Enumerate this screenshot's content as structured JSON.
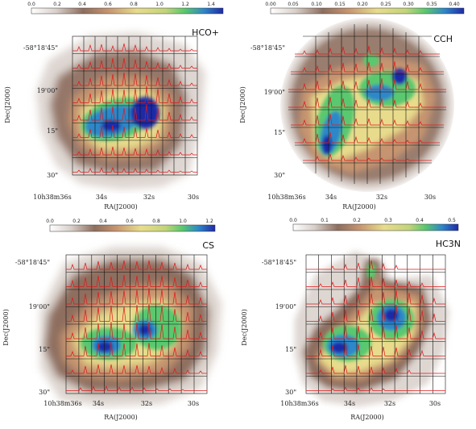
{
  "colors": {
    "colormap": [
      "#ffffff",
      "#d8cfc9",
      "#8e6e5e",
      "#c69470",
      "#e8dc8c",
      "#c4d47a",
      "#5ac86e",
      "#2f87c8",
      "#1f2aa8"
    ],
    "spectra": "#e01818",
    "grid": "#111111"
  },
  "chart_data": [
    {
      "type": "heatmap",
      "title": "HCO+",
      "xlabel": "RA(J2000)",
      "ylabel": "Dec(J2000)",
      "colorbar": {
        "ticks": [
          "0.0",
          "0.2",
          "0.4",
          "0.6",
          "0.8",
          "1.0",
          "1.2",
          "1.4"
        ],
        "range": [
          0.0,
          1.5
        ]
      },
      "x_ticks": [
        "10h38m36s",
        "34s",
        "32s",
        "30s"
      ],
      "y_ticks": [
        "-58°18'45\"",
        "19'00\"",
        "15\"",
        "30\""
      ],
      "grid": {
        "rows": 8,
        "cols": 11
      }
    },
    {
      "type": "heatmap",
      "title": "CCH",
      "xlabel": "RA(J2000)",
      "ylabel": "Dec(J2000)",
      "colorbar": {
        "ticks": [
          "0.00",
          "0.05",
          "0.10",
          "0.15",
          "0.20",
          "0.25",
          "0.30",
          "0.35",
          "0.40"
        ],
        "range": [
          0.0,
          0.42
        ]
      },
      "x_ticks": [
        "10h38m36s",
        "34s",
        "32s",
        "30s"
      ],
      "y_ticks": [
        "-58°18'45\"",
        "19'00\"",
        "15\"",
        "30\""
      ],
      "grid": {
        "rows": 8,
        "cols": 11
      }
    },
    {
      "type": "heatmap",
      "title": "CS",
      "xlabel": "RA(J2000)",
      "ylabel": "Dec(J2000)",
      "colorbar": {
        "ticks": [
          "0.0",
          "0.2",
          "0.4",
          "0.6",
          "0.8",
          "1.0",
          "1.2"
        ],
        "range": [
          0.0,
          1.25
        ]
      },
      "x_ticks": [
        "10h38m36s",
        "34s",
        "32s",
        "30s"
      ],
      "y_ticks": [
        "-58°18'45\"",
        "19'00\"",
        "15\"",
        "30\""
      ],
      "grid": {
        "rows": 8,
        "cols": 11
      }
    },
    {
      "type": "heatmap",
      "title": "HC3N",
      "xlabel": "RA(J2000)",
      "ylabel": "Dec(J2000)",
      "colorbar": {
        "ticks": [
          "0.0",
          "0.1",
          "0.2",
          "0.3",
          "0.4",
          "0.5"
        ],
        "range": [
          0.0,
          0.52
        ]
      },
      "x_ticks": [
        "10h38m36s",
        "34s",
        "32s",
        "30s"
      ],
      "y_ticks": [
        "-58°18'45\"",
        "19'00\"",
        "15\"",
        "30\""
      ],
      "grid": {
        "rows": 8,
        "cols": 11
      }
    }
  ]
}
